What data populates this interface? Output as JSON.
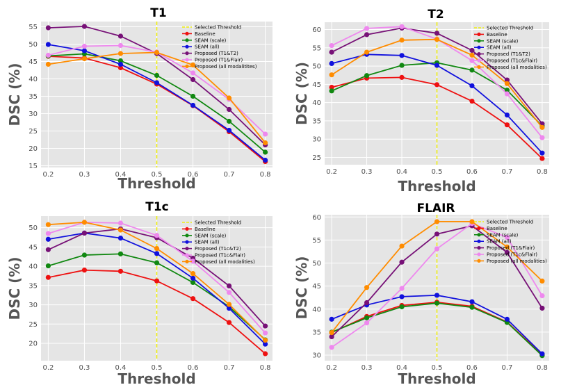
{
  "chart_data": [
    {
      "type": "line",
      "title": "T1",
      "xlabel": "Threshold",
      "ylabel": "DSC (%)",
      "x": [
        0.2,
        0.3,
        0.4,
        0.5,
        0.6,
        0.7,
        0.8
      ],
      "x_ticks": [
        "0.2",
        "0.3",
        "0.4",
        "0.5",
        "0.6",
        "0.7",
        "0.8"
      ],
      "xlim": [
        0.18,
        0.82
      ],
      "ylim": [
        14.5,
        56.5
      ],
      "y_ticks": [
        15,
        20,
        25,
        30,
        35,
        40,
        45,
        50,
        55
      ],
      "selected_threshold": 0.5,
      "legend_position": "top-right",
      "series": [
        {
          "name": "Selected Threshold",
          "type": "vline",
          "color": "#f0f010"
        },
        {
          "name": "Baseline",
          "color": "#ee1111",
          "values": [
            46.5,
            46.0,
            43.2,
            38.5,
            32.3,
            24.8,
            16.2
          ]
        },
        {
          "name": "SEAM (scale)",
          "color": "#118811",
          "values": [
            46.6,
            47.2,
            45.2,
            41.0,
            35.0,
            27.8,
            18.9
          ]
        },
        {
          "name": "SEAM (all)",
          "color": "#1111dd",
          "values": [
            49.9,
            48.1,
            44.2,
            38.9,
            32.4,
            25.2,
            16.6
          ]
        },
        {
          "name": "Proposed (T1&T2)",
          "color": "#771177",
          "values": [
            54.7,
            55.1,
            52.3,
            47.3,
            39.8,
            31.2,
            21.0
          ]
        },
        {
          "name": "Proposed (T1&Flair)",
          "color": "#ee88ee",
          "values": [
            46.8,
            49.4,
            49.6,
            47.7,
            41.7,
            34.1,
            24.1
          ]
        },
        {
          "name": "Proposed (all modalitites)",
          "color": "#ff8c00",
          "values": [
            44.2,
            45.8,
            47.3,
            47.6,
            44.0,
            34.5,
            21.6
          ]
        }
      ]
    },
    {
      "type": "line",
      "title": "T2",
      "xlabel": "Threshold",
      "ylabel": "DSC (%)",
      "x": [
        0.2,
        0.3,
        0.4,
        0.5,
        0.6,
        0.7,
        0.8
      ],
      "x_ticks": [
        "0.2",
        "0.3",
        "0.4",
        "0.5",
        "0.6",
        "0.7",
        "0.8"
      ],
      "xlim": [
        0.18,
        0.82
      ],
      "ylim": [
        23,
        62
      ],
      "y_ticks": [
        25,
        30,
        35,
        40,
        45,
        50,
        55,
        60
      ],
      "selected_threshold": 0.5,
      "legend_position": "top-right",
      "series": [
        {
          "name": "Selected Threshold",
          "type": "vline",
          "color": "#f0f010"
        },
        {
          "name": "Baseline",
          "color": "#ee1111",
          "values": [
            44.2,
            46.7,
            46.9,
            44.9,
            40.4,
            33.9,
            24.7
          ]
        },
        {
          "name": "SEAM (scale)",
          "color": "#118811",
          "values": [
            43.2,
            47.4,
            50.2,
            50.9,
            48.9,
            43.4,
            33.6
          ]
        },
        {
          "name": "SEAM (all)",
          "color": "#1111dd",
          "values": [
            50.7,
            53.2,
            52.9,
            50.2,
            44.6,
            36.6,
            26.2
          ]
        },
        {
          "name": "Proposed (T1&T2)",
          "color": "#771177",
          "values": [
            53.8,
            58.6,
            60.4,
            59.0,
            54.3,
            46.2,
            34.2
          ]
        },
        {
          "name": "Proposed (T1c&Flair)",
          "color": "#ee88ee",
          "values": [
            55.6,
            60.3,
            60.8,
            57.4,
            51.5,
            42.4,
            30.4
          ]
        },
        {
          "name": "Proposed (all modalities)",
          "color": "#ff8c00",
          "values": [
            47.6,
            53.8,
            57.1,
            57.3,
            53.0,
            45.2,
            33.2
          ]
        }
      ]
    },
    {
      "type": "line",
      "title": "T1c",
      "xlabel": "Threshold",
      "ylabel": "DSC (%)",
      "x": [
        0.2,
        0.3,
        0.4,
        0.5,
        0.6,
        0.7,
        0.8
      ],
      "x_ticks": [
        "0.2",
        "0.3",
        "0.4",
        "0.5",
        "0.6",
        "0.7",
        "0.8"
      ],
      "xlim": [
        0.18,
        0.82
      ],
      "ylim": [
        15.5,
        53
      ],
      "y_ticks": [
        20,
        25,
        30,
        35,
        40,
        45,
        50
      ],
      "selected_threshold": 0.5,
      "legend_position": "top-right",
      "series": [
        {
          "name": "Selected Threshold",
          "type": "vline",
          "color": "#f0f010"
        },
        {
          "name": "Baseline",
          "color": "#ee1111",
          "values": [
            37.1,
            39.0,
            38.7,
            36.2,
            31.6,
            25.4,
            17.3
          ]
        },
        {
          "name": "SEAM (scale)",
          "color": "#118811",
          "values": [
            40.1,
            42.9,
            43.2,
            40.9,
            35.8,
            29.5,
            20.9
          ]
        },
        {
          "name": "SEAM (all)",
          "color": "#1111dd",
          "values": [
            47.0,
            48.6,
            47.3,
            43.3,
            36.9,
            29.1,
            19.8
          ]
        },
        {
          "name": "Proposed (T1c&T2)",
          "color": "#771177",
          "values": [
            44.3,
            48.6,
            49.7,
            47.4,
            42.1,
            34.9,
            24.5
          ]
        },
        {
          "name": "Proposed (T1c&Flair)",
          "color": "#ee88ee",
          "values": [
            48.5,
            51.4,
            51.2,
            48.0,
            41.3,
            33.2,
            22.7
          ]
        },
        {
          "name": "Proposed (all modalities)",
          "color": "#ff8c00",
          "values": [
            50.8,
            51.4,
            49.4,
            44.6,
            38.1,
            30.1,
            20.8
          ]
        }
      ]
    },
    {
      "type": "line",
      "title": "FLAIR",
      "xlabel": "Threshold",
      "ylabel": "DSC (%)",
      "x": [
        0.2,
        0.3,
        0.4,
        0.5,
        0.6,
        0.7,
        0.8
      ],
      "x_ticks": [
        "0.2",
        "0.3",
        "0.4",
        "0.5",
        "0.6",
        "0.7",
        "0.8"
      ],
      "xlim": [
        0.18,
        0.82
      ],
      "ylim": [
        28.8,
        60.5
      ],
      "y_ticks": [
        30,
        35,
        40,
        45,
        50,
        55,
        60
      ],
      "selected_threshold": 0.5,
      "legend_position": "top-right",
      "series": [
        {
          "name": "Selected Threshold",
          "type": "vline",
          "color": "#f0f010"
        },
        {
          "name": "Baseline",
          "color": "#ee1111",
          "values": [
            34.9,
            38.4,
            40.8,
            41.5,
            40.6,
            37.2,
            30.1
          ]
        },
        {
          "name": "SEAM (scale)",
          "color": "#118811",
          "values": [
            35.0,
            38.1,
            40.5,
            41.3,
            40.4,
            37.1,
            29.9
          ]
        },
        {
          "name": "SEAM (all)",
          "color": "#1111dd",
          "values": [
            37.8,
            40.9,
            42.7,
            43.0,
            41.6,
            37.8,
            30.3
          ]
        },
        {
          "name": "Proposed (T1&Flair)",
          "color": "#771177",
          "values": [
            34.0,
            41.4,
            50.2,
            56.3,
            58.1,
            52.3,
            40.2
          ]
        },
        {
          "name": "Proposed (T1c&Flair)",
          "color": "#ee88ee",
          "values": [
            31.7,
            37.0,
            44.5,
            53.1,
            58.6,
            55.6,
            42.9
          ]
        },
        {
          "name": "Proposed (all modalities)",
          "color": "#ff8c00",
          "values": [
            34.9,
            44.7,
            53.7,
            59.0,
            59.0,
            53.5,
            46.1
          ]
        }
      ]
    }
  ]
}
